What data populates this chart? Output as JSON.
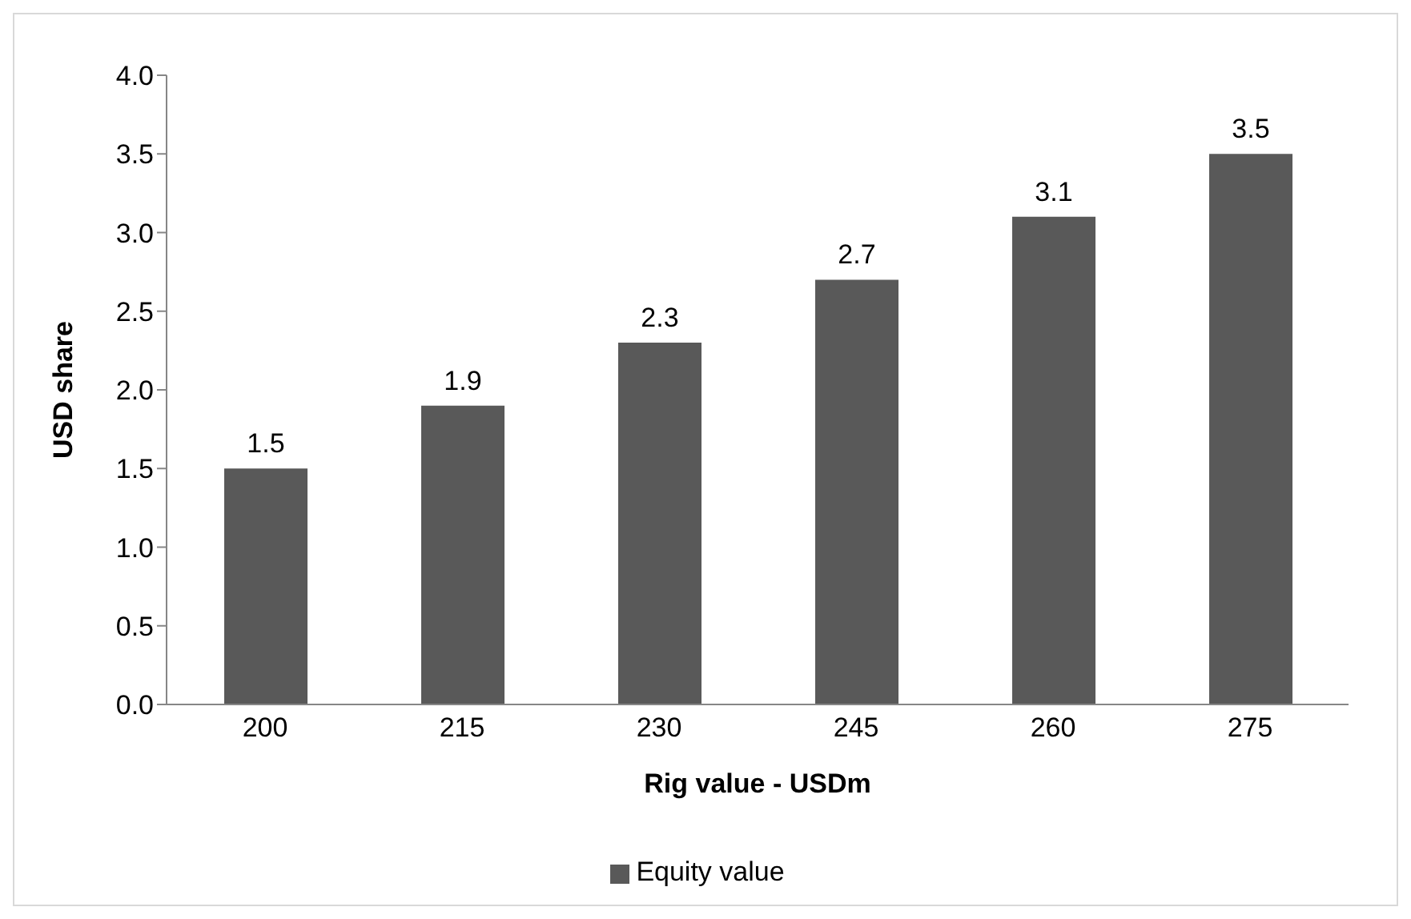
{
  "chart_data": {
    "type": "bar",
    "xlabel": "Rig value - USDm",
    "ylabel": "USD share",
    "categories": [
      "200",
      "215",
      "230",
      "245",
      "260",
      "275"
    ],
    "series": [
      {
        "name": "Equity value",
        "color": "#595959",
        "values": [
          1.5,
          1.9,
          2.3,
          2.7,
          3.1,
          3.5
        ]
      }
    ],
    "ylim": [
      0,
      4
    ],
    "yticks": [
      {
        "value": 0,
        "label": "0.0"
      },
      {
        "value": 0.5,
        "label": "0.5"
      },
      {
        "value": 1,
        "label": "1.0"
      },
      {
        "value": 1.5,
        "label": "1.5"
      },
      {
        "value": 2,
        "label": "2.0"
      },
      {
        "value": 2.5,
        "label": "2.5"
      },
      {
        "value": 3,
        "label": "3.0"
      },
      {
        "value": 3.5,
        "label": "3.5"
      },
      {
        "value": 4,
        "label": "4.0"
      }
    ],
    "data_labels": true,
    "legend": "bottom",
    "grid": false
  }
}
